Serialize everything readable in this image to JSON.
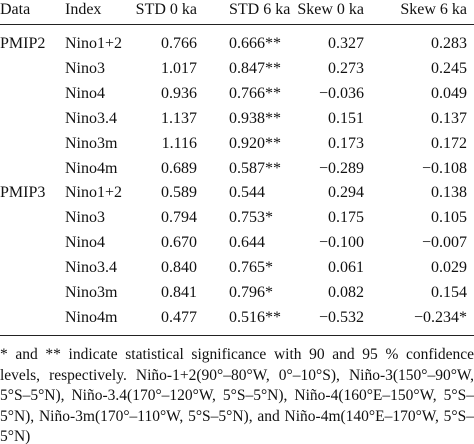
{
  "table": {
    "header": [
      "Data",
      "Index",
      "STD 0 ka",
      "STD 6 ka",
      "Skew 0 ka",
      "Skew 6 ka"
    ],
    "groups": [
      {
        "label": "PMIP2",
        "rows": [
          [
            "Nino1+2",
            "0.766",
            "0.666**",
            "0.327",
            "0.283"
          ],
          [
            "Nino3",
            "1.017",
            "0.847**",
            "0.273",
            "0.245"
          ],
          [
            "Nino4",
            "0.936",
            "0.766**",
            "−0.036",
            "0.049"
          ],
          [
            "Nino3.4",
            "1.137",
            "0.938**",
            "0.151",
            "0.137"
          ],
          [
            "Nino3m",
            "1.116",
            "0.920**",
            "0.173",
            "0.172"
          ],
          [
            "Nino4m",
            "0.689",
            "0.587**",
            "−0.289",
            "−0.108"
          ]
        ]
      },
      {
        "label": "PMIP3",
        "rows": [
          [
            "Nino1+2",
            "0.589",
            "0.544",
            "0.294",
            "0.138"
          ],
          [
            "Nino3",
            "0.794",
            "0.753*",
            "0.175",
            "0.105"
          ],
          [
            "Nino4",
            "0.670",
            "0.644",
            "−0.100",
            "−0.007"
          ],
          [
            "Nino3.4",
            "0.840",
            "0.765*",
            "0.061",
            "0.029"
          ],
          [
            "Nino3m",
            "0.841",
            "0.796*",
            "0.082",
            "0.154"
          ],
          [
            "Nino4m",
            "0.477",
            "0.516**",
            "−0.532",
            "−0.234*"
          ]
        ]
      }
    ],
    "footnote": "* and ** indicate statistical significance with 90 and 95 % confidence levels, respectively. Niño-1+2(90°–80°W, 0°–10°S), Niño-3(150°–90°W, 5°S–5°N), Niño-3.4(170°–120°W, 5°S–5°N), Niño-4(160°E–150°W, 5°S–5°N), Niño-3m(170°–110°W, 5°S–5°N), and Niño-4m(140°E–170°W, 5°S–5°N)"
  }
}
